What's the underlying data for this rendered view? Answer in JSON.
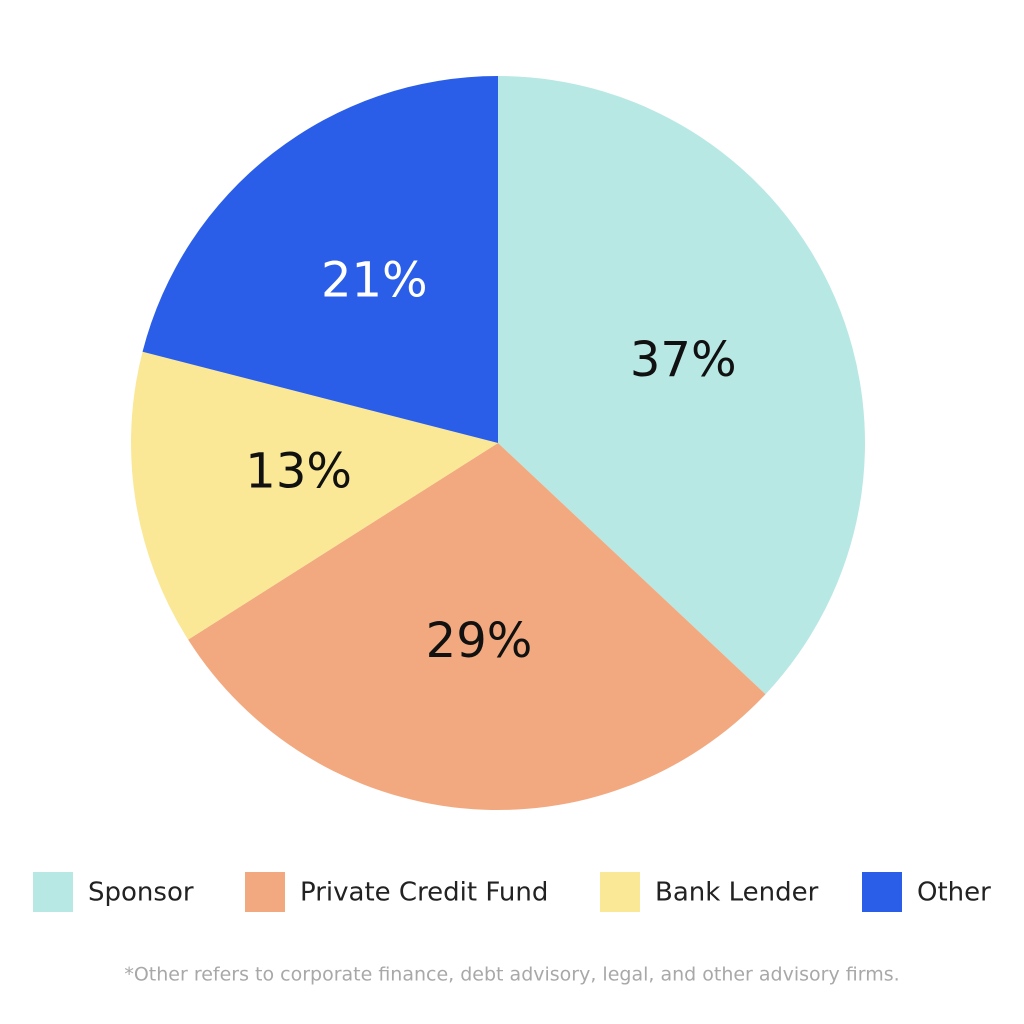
{
  "chart_data": {
    "type": "pie",
    "categories": [
      "Sponsor",
      "Private Credit Fund",
      "Bank Lender",
      "Other"
    ],
    "values": [
      37,
      29,
      13,
      21
    ],
    "value_labels": [
      "37%",
      "29%",
      "13%",
      "21%"
    ],
    "colors": [
      "#b8e8e4",
      "#f2a97f",
      "#fae896",
      "#2b5ee8"
    ],
    "legend": "bottom",
    "footnote": "*Other refers to corporate finance, debt advisory, legal, and other advisory firms."
  }
}
